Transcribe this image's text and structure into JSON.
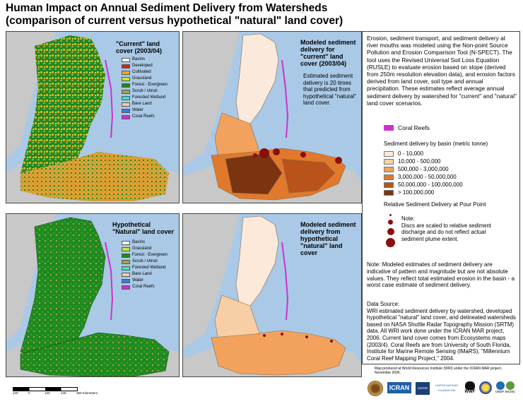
{
  "title": {
    "line1": "Human Impact on Annual Sediment Delivery from Watersheds",
    "line2": "(comparison of current versus hypothetical \"natural\" land cover)"
  },
  "map_current_landcover": {
    "title": "\"Current\" land cover (2003/04)",
    "legend": [
      {
        "label": "Basins",
        "color": "#ffffff"
      },
      {
        "label": "Developed",
        "color": "#e31a1c"
      },
      {
        "label": "Cultivated",
        "color": "#f4a620"
      },
      {
        "label": "Grassland",
        "color": "#c5e63a"
      },
      {
        "label": "Forest - Evergreen",
        "color": "#1f8a1f"
      },
      {
        "label": "Scrub / shrub",
        "color": "#a9a04d"
      },
      {
        "label": "Forested Wetland",
        "color": "#31e6c8"
      },
      {
        "label": "Bare Land",
        "color": "#f3cfa8"
      },
      {
        "label": "Water",
        "color": "#3c7fd6"
      },
      {
        "label": "Coral Reefs",
        "color": "#cc33cc"
      }
    ]
  },
  "map_current_sediment": {
    "title": "Modeled sediment delivery for \"current\" land cover (2003/04)",
    "note": "Estimated sediment delivery is 20 times that predicted from hypothetical \"natural\" land cover."
  },
  "map_natural_landcover": {
    "title": "Hypothetical \"Natural\" land cover",
    "legend": [
      {
        "label": "Basins",
        "color": "#ffffff"
      },
      {
        "label": "Grassland",
        "color": "#c5e63a"
      },
      {
        "label": "Forest - Evergreen",
        "color": "#1f8a1f"
      },
      {
        "label": "Scrub / shrub",
        "color": "#a9a04d"
      },
      {
        "label": "Forested Wetland",
        "color": "#31e6c8"
      },
      {
        "label": "Bare Land",
        "color": "#f3cfa8"
      },
      {
        "label": "Water",
        "color": "#3c7fd6"
      },
      {
        "label": "Coral Reefs",
        "color": "#cc33cc"
      }
    ]
  },
  "map_natural_sediment": {
    "title": "Modeled sediment delivery from hypothetical \"natural\" land cover"
  },
  "sidebar": {
    "intro": "Erosion, sediment transport, and sediment delivery at river mouths was modeled using the Non-point Source Pollution and Erosion Comparison Tool (N-SPECT). The tool uses the Revised Universal Soil Loss Equation (RUSLE) to evaluate erosion based on slope (derived from 250m resolution elevation data), and erosion factors derived from land cover, soil type and annual precipitation. These estimates reflect average annual sediment delivery by watershed for \"current\" and \"natural\" land cover scenarios.",
    "coral_label": "Coral Reefs",
    "coral_color": "#cc33cc",
    "sediment_title": "Sediment delivery by basin (metric tonne)",
    "sediment_classes": [
      {
        "label": "0 - 10,000",
        "color": "#fde9d9"
      },
      {
        "label": "10,000 - 500,000",
        "color": "#f8cfa4"
      },
      {
        "label": "500,000 - 3,000,000",
        "color": "#f2a25c"
      },
      {
        "label": "3,000,000 - 50,000,000",
        "color": "#e0792c"
      },
      {
        "label": "50,000,000 - 100,000,000",
        "color": "#b9531a"
      },
      {
        "label": "> 100,000,000",
        "color": "#7a3410"
      }
    ],
    "pour_title": "Relative Sediment Delivery at Pour Point",
    "pour_note": "Note:\nDiscs are scaled to relative sediment discharge and do not reflect actual sediment plume extent.",
    "note2": "Note: Modeled estimates of sediment delivery are indicative of pattern and magnitude but are not absolute values. They reflect total estimated erosion in the basin - a worst case estimate of sediment delivery.",
    "source": "Data Source:\nWRI estimated sediment delivery by watershed, developed hypothetical \"natural\" land cover, and delineated watersheds based on NASA Shuttle Radar Topography Mission (SRTM) data. All WRI work done under the ICRAN MAR project, 2006. Current land cover comes from Ecosystems maps (2003/4). Coral Reefs are from University of South Florida, Institute for Marine Remote Sensing (IMaRS), \"Millennium Coral Reef Mapping Project,\" 2004."
  },
  "credit": "Map produced at World Resources Institute (WRI) under the ICRAN MAR project. November 2006.",
  "scalebar": {
    "labels": [
      "120",
      "0",
      "120",
      "240",
      "360 Kilometers"
    ]
  },
  "logos": [
    "WRI",
    "ICRAN",
    "USAID",
    "UNITED NATIONS FOUNDATION",
    "WWF",
    "UNEP WCMC"
  ]
}
